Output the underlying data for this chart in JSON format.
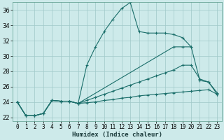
{
  "xlabel": "Humidex (Indice chaleur)",
  "bg_color": "#cdeaea",
  "grid_color": "#a0c8c8",
  "line_color": "#1a6e6a",
  "xlim": [
    -0.5,
    23.5
  ],
  "ylim": [
    21.5,
    37.0
  ],
  "xticks": [
    0,
    1,
    2,
    3,
    4,
    5,
    6,
    7,
    8,
    9,
    10,
    11,
    12,
    13,
    14,
    15,
    16,
    17,
    18,
    19,
    20,
    21,
    22,
    23
  ],
  "yticks": [
    22,
    24,
    26,
    28,
    30,
    32,
    34,
    36
  ],
  "series": [
    {
      "x": [
        0,
        1,
        2,
        3,
        4,
        5,
        6,
        7,
        8,
        9,
        10,
        11,
        12,
        13,
        14,
        15,
        16,
        17,
        18,
        19,
        20
      ],
      "y": [
        24.0,
        22.2,
        22.2,
        22.5,
        24.2,
        24.1,
        24.1,
        23.8,
        28.8,
        31.2,
        33.2,
        34.8,
        36.2,
        37.0,
        33.2,
        33.0,
        33.0,
        33.0,
        32.8,
        32.4,
        31.2
      ]
    },
    {
      "x": [
        0,
        1,
        2,
        3,
        4,
        5,
        6,
        7,
        18,
        19,
        20,
        21,
        22,
        23
      ],
      "y": [
        24.0,
        22.2,
        22.2,
        22.5,
        24.2,
        24.1,
        24.1,
        23.8,
        31.2,
        31.2,
        31.2,
        26.8,
        26.6,
        25.0
      ]
    },
    {
      "x": [
        0,
        1,
        2,
        3,
        4,
        5,
        6,
        7,
        8,
        9,
        10,
        11,
        12,
        13,
        14,
        15,
        16,
        17,
        18,
        19,
        20,
        21,
        22,
        23
      ],
      "y": [
        24.0,
        22.2,
        22.2,
        22.5,
        24.2,
        24.1,
        24.1,
        23.8,
        24.2,
        24.6,
        25.0,
        25.4,
        25.8,
        26.2,
        26.6,
        27.0,
        27.4,
        27.8,
        28.2,
        28.8,
        28.8,
        27.0,
        26.6,
        25.2
      ]
    },
    {
      "x": [
        0,
        1,
        2,
        3,
        4,
        5,
        6,
        7,
        8,
        9,
        10,
        11,
        12,
        13,
        14,
        15,
        16,
        17,
        18,
        19,
        20,
        21,
        22,
        23
      ],
      "y": [
        24.0,
        22.2,
        22.2,
        22.5,
        24.2,
        24.1,
        24.1,
        23.8,
        23.9,
        24.0,
        24.2,
        24.3,
        24.5,
        24.6,
        24.8,
        24.9,
        25.0,
        25.1,
        25.2,
        25.3,
        25.4,
        25.5,
        25.6,
        25.0
      ]
    }
  ]
}
